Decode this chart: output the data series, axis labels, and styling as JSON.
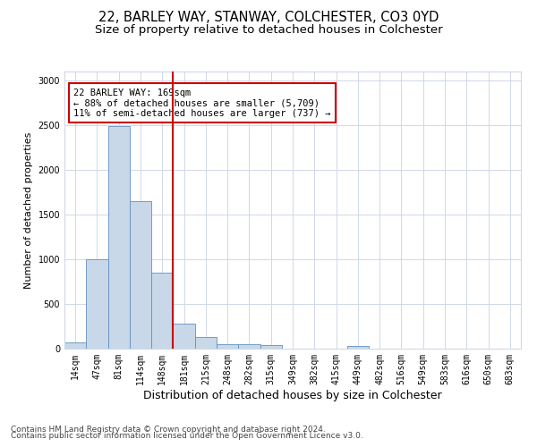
{
  "title1": "22, BARLEY WAY, STANWAY, COLCHESTER, CO3 0YD",
  "title2": "Size of property relative to detached houses in Colchester",
  "xlabel": "Distribution of detached houses by size in Colchester",
  "ylabel": "Number of detached properties",
  "categories": [
    "14sqm",
    "47sqm",
    "81sqm",
    "114sqm",
    "148sqm",
    "181sqm",
    "215sqm",
    "248sqm",
    "282sqm",
    "315sqm",
    "349sqm",
    "382sqm",
    "415sqm",
    "449sqm",
    "482sqm",
    "516sqm",
    "549sqm",
    "583sqm",
    "616sqm",
    "650sqm",
    "683sqm"
  ],
  "values": [
    75,
    1000,
    2490,
    1650,
    850,
    280,
    130,
    55,
    50,
    40,
    0,
    0,
    0,
    30,
    0,
    0,
    0,
    0,
    0,
    0,
    0
  ],
  "bar_color": "#c8d8e8",
  "bar_edge_color": "#6090c0",
  "vline_color": "#cc0000",
  "annotation_text": "22 BARLEY WAY: 169sqm\n← 88% of detached houses are smaller (5,709)\n11% of semi-detached houses are larger (737) →",
  "annotation_box_color": "#ffffff",
  "annotation_box_edge": "#cc0000",
  "footer1": "Contains HM Land Registry data © Crown copyright and database right 2024.",
  "footer2": "Contains public sector information licensed under the Open Government Licence v3.0.",
  "ylim": [
    0,
    3100
  ],
  "yticks": [
    0,
    500,
    1000,
    1500,
    2000,
    2500,
    3000
  ],
  "grid_color": "#d0d8e8",
  "title1_fontsize": 10.5,
  "title2_fontsize": 9.5,
  "xlabel_fontsize": 9,
  "ylabel_fontsize": 8,
  "tick_fontsize": 7,
  "annotation_fontsize": 7.5,
  "footer_fontsize": 6.5
}
